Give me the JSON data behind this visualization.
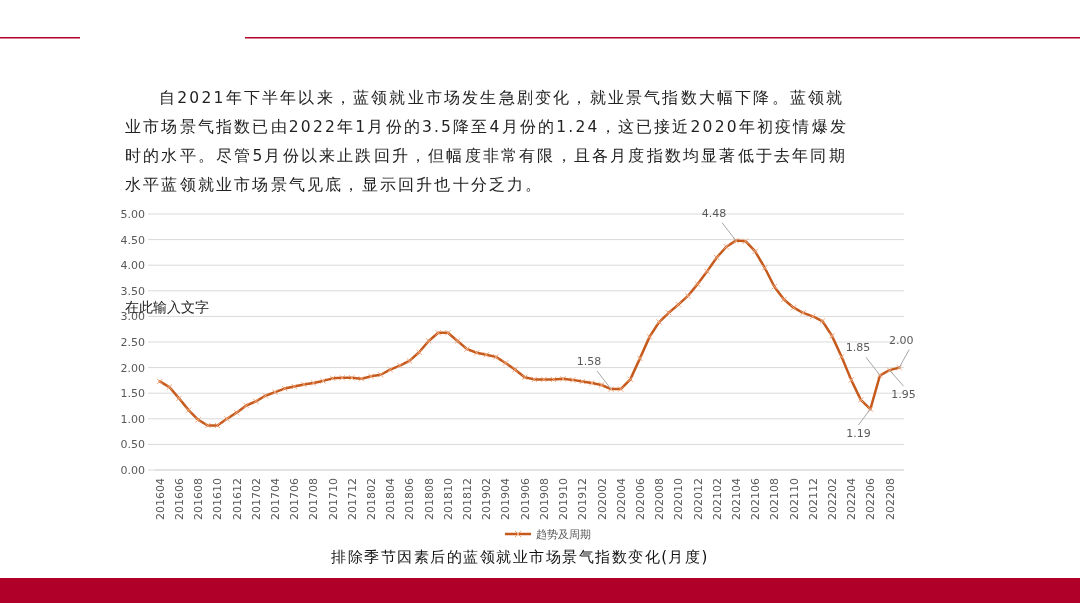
{
  "chart_data": {
    "type": "line",
    "title": "排除季节因素后的蓝领就业市场景气指数变化(月度)",
    "annotations": [
      "自2021年下半年以来，蓝领就业市场发生急剧变化，就业景气指数大幅下降。蓝领就业市场景气指数已由2022年1月份的3.5降至4月份的1.24，这已接近2020年初疫情爆发时的水平。尽管5月份以来止跌回升，但幅度非常有限，且各月度指数均显著低于去年同期水平蓝领就业市场景气见底，显示回升也十分乏力。",
      "在此输入文字"
    ],
    "categories": [
      "201604",
      null,
      "201606",
      null,
      "201608",
      null,
      "201610",
      null,
      "201612",
      null,
      "201702",
      null,
      "201704",
      null,
      "201706",
      null,
      "201708",
      null,
      "201710",
      null,
      "201712",
      null,
      "201802",
      null,
      "201804",
      null,
      "201806",
      null,
      "201808",
      null,
      "201810",
      null,
      "201812",
      null,
      "201902",
      null,
      "201904",
      null,
      "201906",
      null,
      "201908",
      null,
      "201910",
      null,
      "201912",
      null,
      "202002",
      null,
      "202004",
      null,
      "202006",
      null,
      "202008",
      null,
      "202010",
      null,
      "202012",
      null,
      "202102",
      null,
      "202104",
      null,
      "202106",
      null,
      "202108",
      null,
      "202110",
      null,
      "202112",
      null,
      "202202",
      null,
      "202204",
      null,
      "202206",
      null,
      "202208",
      null
    ],
    "series": [
      {
        "name": "趋势及周期",
        "color": "#c55a1c",
        "values": [
          1.73,
          1.62,
          1.4,
          1.17,
          0.98,
          0.87,
          0.87,
          1.0,
          1.12,
          1.26,
          1.34,
          1.45,
          1.52,
          1.59,
          1.63,
          1.67,
          1.7,
          1.74,
          1.79,
          1.8,
          1.8,
          1.78,
          1.83,
          1.86,
          1.96,
          2.04,
          2.13,
          2.3,
          2.52,
          2.68,
          2.68,
          2.52,
          2.36,
          2.29,
          2.25,
          2.21,
          2.09,
          1.96,
          1.81,
          1.77,
          1.77,
          1.77,
          1.78,
          1.76,
          1.73,
          1.7,
          1.66,
          1.58,
          1.58,
          1.77,
          2.18,
          2.6,
          2.89,
          3.07,
          3.23,
          3.4,
          3.63,
          3.88,
          4.15,
          4.36,
          4.48,
          4.47,
          4.27,
          3.95,
          3.58,
          3.33,
          3.17,
          3.07,
          3.0,
          2.91,
          2.62,
          2.21,
          1.76,
          1.37,
          1.19,
          1.85,
          1.95,
          2.0
        ],
        "value_labels": [
          null,
          null,
          null,
          null,
          null,
          null,
          null,
          null,
          null,
          null,
          null,
          null,
          null,
          null,
          null,
          null,
          null,
          null,
          null,
          null,
          null,
          null,
          null,
          null,
          null,
          null,
          null,
          null,
          null,
          null,
          null,
          null,
          null,
          null,
          null,
          null,
          null,
          null,
          null,
          null,
          null,
          null,
          null,
          null,
          null,
          null,
          null,
          "1.58",
          null,
          null,
          null,
          null,
          null,
          null,
          null,
          null,
          null,
          null,
          null,
          null,
          "4.48",
          null,
          null,
          null,
          null,
          null,
          null,
          null,
          null,
          null,
          null,
          null,
          null,
          null,
          "1.19",
          "1.85",
          "1.95",
          "2.00"
        ]
      }
    ],
    "ylim": [
      0,
      5
    ],
    "yticks": [
      {
        "value": 0,
        "label": "0.00"
      },
      {
        "value": 0.5,
        "label": "0.50"
      },
      {
        "value": 1,
        "label": "1.00"
      },
      {
        "value": 1.5,
        "label": "1.50"
      },
      {
        "value": 2,
        "label": "2.00"
      },
      {
        "value": 2.5,
        "label": "2.50"
      },
      {
        "value": 3,
        "label": "3.00"
      },
      {
        "value": 3.5,
        "label": "3.50"
      },
      {
        "value": 4,
        "label": "4.00"
      },
      {
        "value": 4.5,
        "label": "4.50"
      },
      {
        "value": 5,
        "label": "5.00"
      }
    ],
    "grid": "y",
    "legend": "bottom",
    "marker": "cross",
    "line_style": "solid"
  }
}
